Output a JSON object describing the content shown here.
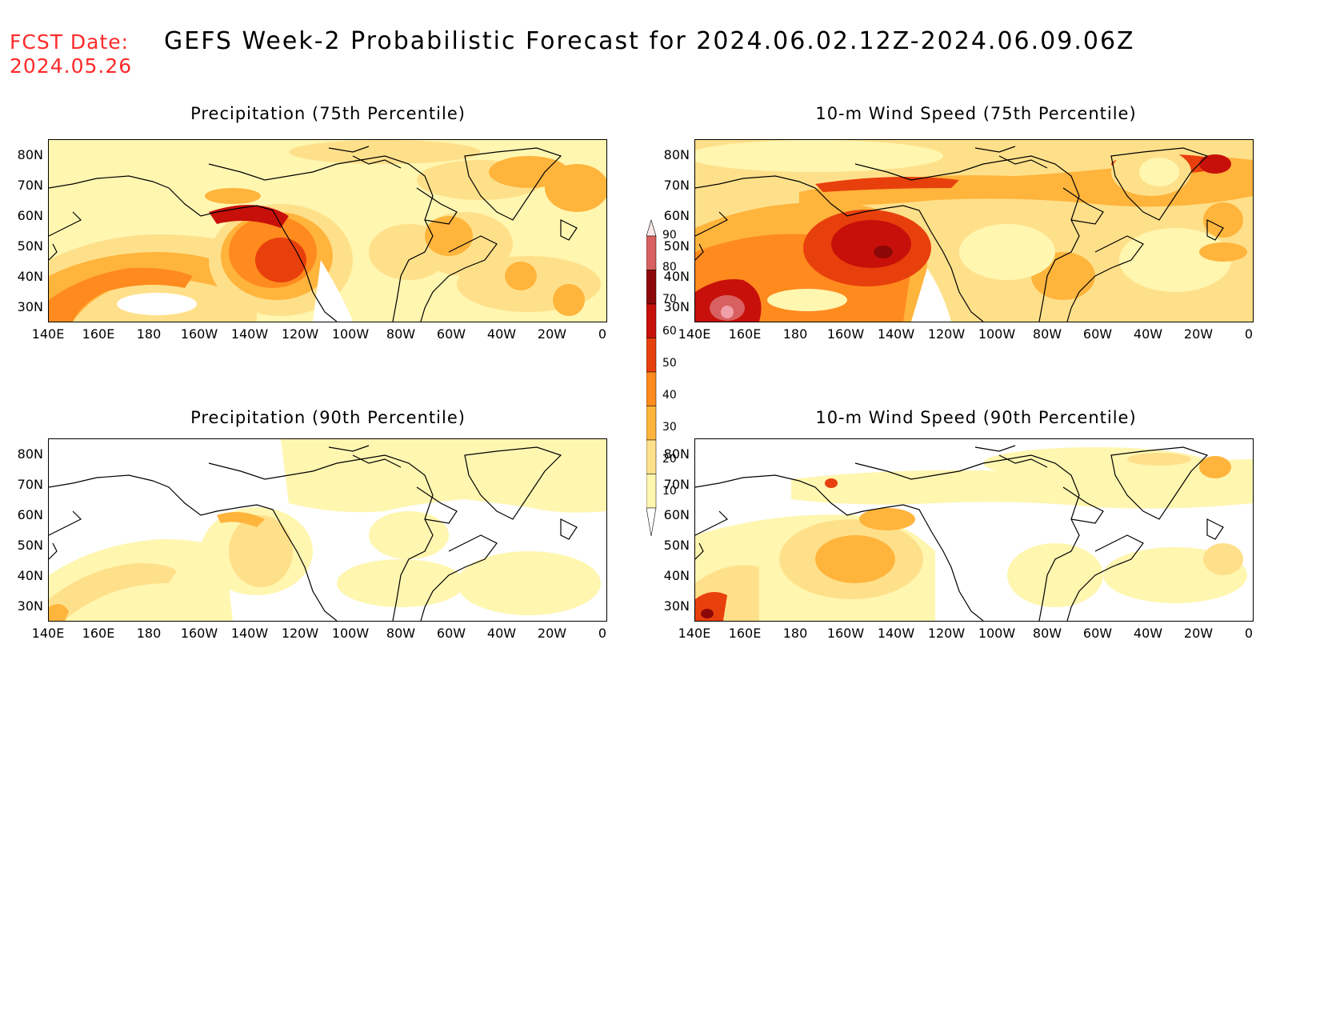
{
  "header": {
    "fcst_label": "FCST Date:",
    "fcst_date": "2024.05.26",
    "title": "GEFS Week-2 Probabilistic Forecast for 2024.06.02.12Z-2024.06.09.06Z"
  },
  "panels": [
    {
      "title": "Precipitation (75th Percentile)"
    },
    {
      "title": "10-m Wind Speed (75th Percentile)"
    },
    {
      "title": "Precipitation (90th Percentile)"
    },
    {
      "title": "10-m Wind Speed (90th Percentile)"
    }
  ],
  "axes": {
    "lat_labels": [
      "80N",
      "70N",
      "60N",
      "50N",
      "40N",
      "30N"
    ],
    "lon_labels": [
      "140E",
      "160E",
      "180",
      "160W",
      "140W",
      "120W",
      "100W",
      "80W",
      "60W",
      "40W",
      "20W",
      "0"
    ]
  },
  "colorbar": {
    "levels": [
      "90",
      "80",
      "70",
      "60",
      "50",
      "40",
      "30",
      "20",
      "10"
    ],
    "colors": {
      "c10": "#fff6b0",
      "c20": "#ffe08a",
      "c30": "#ffb43c",
      "c40": "#ff8a1e",
      "c50": "#e8400c",
      "c60": "#c8100a",
      "c70": "#8c0808",
      "c80": "#d86060",
      "c90": "#f0a0a8"
    }
  }
}
